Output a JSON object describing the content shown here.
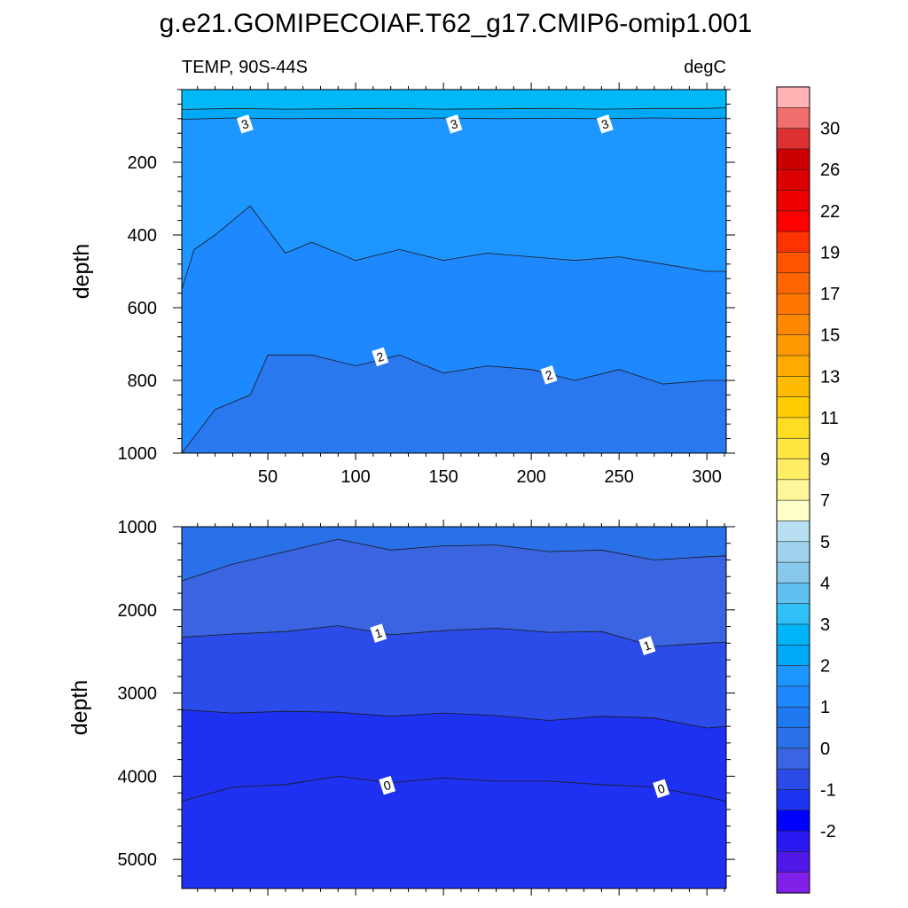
{
  "figure": {
    "title": "g.e21.GOMIPECOIAF.T62_g17.CMIP6-omip1.001"
  },
  "chart_data": [
    {
      "type": "contour",
      "panel": "upper",
      "left_label": "TEMP, 90S-44S",
      "right_label": "degC",
      "ylabel": "depth",
      "xlabel": "",
      "xlim": [
        1,
        311
      ],
      "ylim": [
        1000,
        0
      ],
      "x_ticks": [
        50,
        100,
        150,
        200,
        250,
        300
      ],
      "y_ticks": [
        200,
        400,
        600,
        800,
        1000
      ],
      "grid": false,
      "contour_lines": [
        {
          "level": 3.5,
          "x": [
            1,
            30,
            60,
            90,
            120,
            150,
            180,
            210,
            240,
            270,
            300,
            311
          ],
          "depth": [
            55,
            52,
            54,
            53,
            52,
            54,
            53,
            52,
            54,
            52,
            52,
            50
          ]
        },
        {
          "level": 3,
          "x": [
            1,
            30,
            60,
            90,
            120,
            150,
            180,
            210,
            240,
            270,
            300,
            311
          ],
          "depth": [
            82,
            78,
            80,
            79,
            80,
            78,
            80,
            79,
            80,
            78,
            80,
            78
          ]
        },
        {
          "level": 2.5,
          "x": [
            1,
            8,
            20,
            40,
            60,
            75,
            100,
            125,
            150,
            175,
            200,
            225,
            250,
            275,
            300,
            311
          ],
          "depth": [
            550,
            440,
            400,
            320,
            450,
            420,
            470,
            440,
            470,
            450,
            460,
            470,
            460,
            480,
            500,
            500
          ]
        },
        {
          "level": 2,
          "x": [
            1,
            20,
            40,
            50,
            75,
            100,
            125,
            150,
            175,
            200,
            225,
            250,
            275,
            300,
            311
          ],
          "depth": [
            1000,
            880,
            840,
            730,
            730,
            760,
            730,
            780,
            760,
            770,
            800,
            770,
            810,
            800,
            800
          ]
        }
      ],
      "line_labels": [
        {
          "text": "3",
          "x": 37,
          "depth": 95
        },
        {
          "text": "3",
          "x": 156,
          "depth": 95
        },
        {
          "text": "3",
          "x": 242,
          "depth": 95
        },
        {
          "text": "2",
          "x": 114,
          "depth": 735
        },
        {
          "text": "2",
          "x": 210,
          "depth": 785
        }
      ]
    },
    {
      "type": "contour",
      "panel": "lower",
      "ylabel": "depth",
      "xlabel": "",
      "xlim": [
        1,
        311
      ],
      "ylim": [
        5350,
        1000
      ],
      "y_ticks": [
        1000,
        2000,
        3000,
        4000,
        5000
      ],
      "grid": false,
      "contour_lines": [
        {
          "level": 1.5,
          "x": [
            1,
            30,
            60,
            90,
            120,
            150,
            180,
            210,
            240,
            270,
            300,
            311
          ],
          "depth": [
            1650,
            1450,
            1300,
            1150,
            1280,
            1230,
            1220,
            1300,
            1280,
            1400,
            1360,
            1350
          ]
        },
        {
          "level": 1,
          "x": [
            1,
            30,
            60,
            90,
            120,
            150,
            180,
            210,
            240,
            270,
            300,
            311
          ],
          "depth": [
            2330,
            2290,
            2260,
            2190,
            2300,
            2250,
            2220,
            2270,
            2260,
            2440,
            2400,
            2390
          ]
        },
        {
          "level": 0.5,
          "x": [
            1,
            30,
            60,
            90,
            120,
            150,
            180,
            210,
            240,
            270,
            300,
            311
          ],
          "depth": [
            3200,
            3240,
            3220,
            3230,
            3280,
            3240,
            3270,
            3330,
            3280,
            3300,
            3420,
            3400
          ]
        },
        {
          "level": 0,
          "x": [
            1,
            30,
            60,
            90,
            120,
            150,
            180,
            210,
            240,
            270,
            300,
            311
          ],
          "depth": [
            4300,
            4130,
            4100,
            4000,
            4080,
            4020,
            4060,
            4060,
            4100,
            4130,
            4250,
            4300
          ]
        }
      ],
      "line_labels": [
        {
          "text": "1",
          "x": 113,
          "depth": 2280
        },
        {
          "text": "1",
          "x": 266,
          "depth": 2430
        },
        {
          "text": "0",
          "x": 118,
          "depth": 4110
        },
        {
          "text": "0",
          "x": 274,
          "depth": 4150
        }
      ]
    }
  ],
  "colorbar": {
    "tick_labels": [
      "30",
      "26",
      "22",
      "19",
      "17",
      "15",
      "13",
      "11",
      "9",
      "7",
      "5",
      "4",
      "3",
      "2",
      "1",
      "0",
      "-1",
      "-2"
    ],
    "colors_top_to_bottom": [
      "#ffb3b3",
      "#f06e6e",
      "#dd3030",
      "#cc0000",
      "#dd0000",
      "#ee0000",
      "#ff0000",
      "#ff3300",
      "#ff5500",
      "#ff6600",
      "#ff7700",
      "#ff8800",
      "#ff9900",
      "#ffaa00",
      "#ffbb00",
      "#ffcc00",
      "#ffdd22",
      "#ffe640",
      "#ffee66",
      "#fff699",
      "#ffffcc",
      "#b8e0f0",
      "#a0d4ee",
      "#88c8ec",
      "#60c0f0",
      "#30c0f8",
      "#00b4f8",
      "#00a8f8",
      "#1e96ff",
      "#1e88ff",
      "#1e78f0",
      "#2a70e8",
      "#3a64e0",
      "#2b4ce8",
      "#1e34f0",
      "#0000ff",
      "#2a18f0",
      "#5018e8",
      "#8020e8"
    ]
  }
}
